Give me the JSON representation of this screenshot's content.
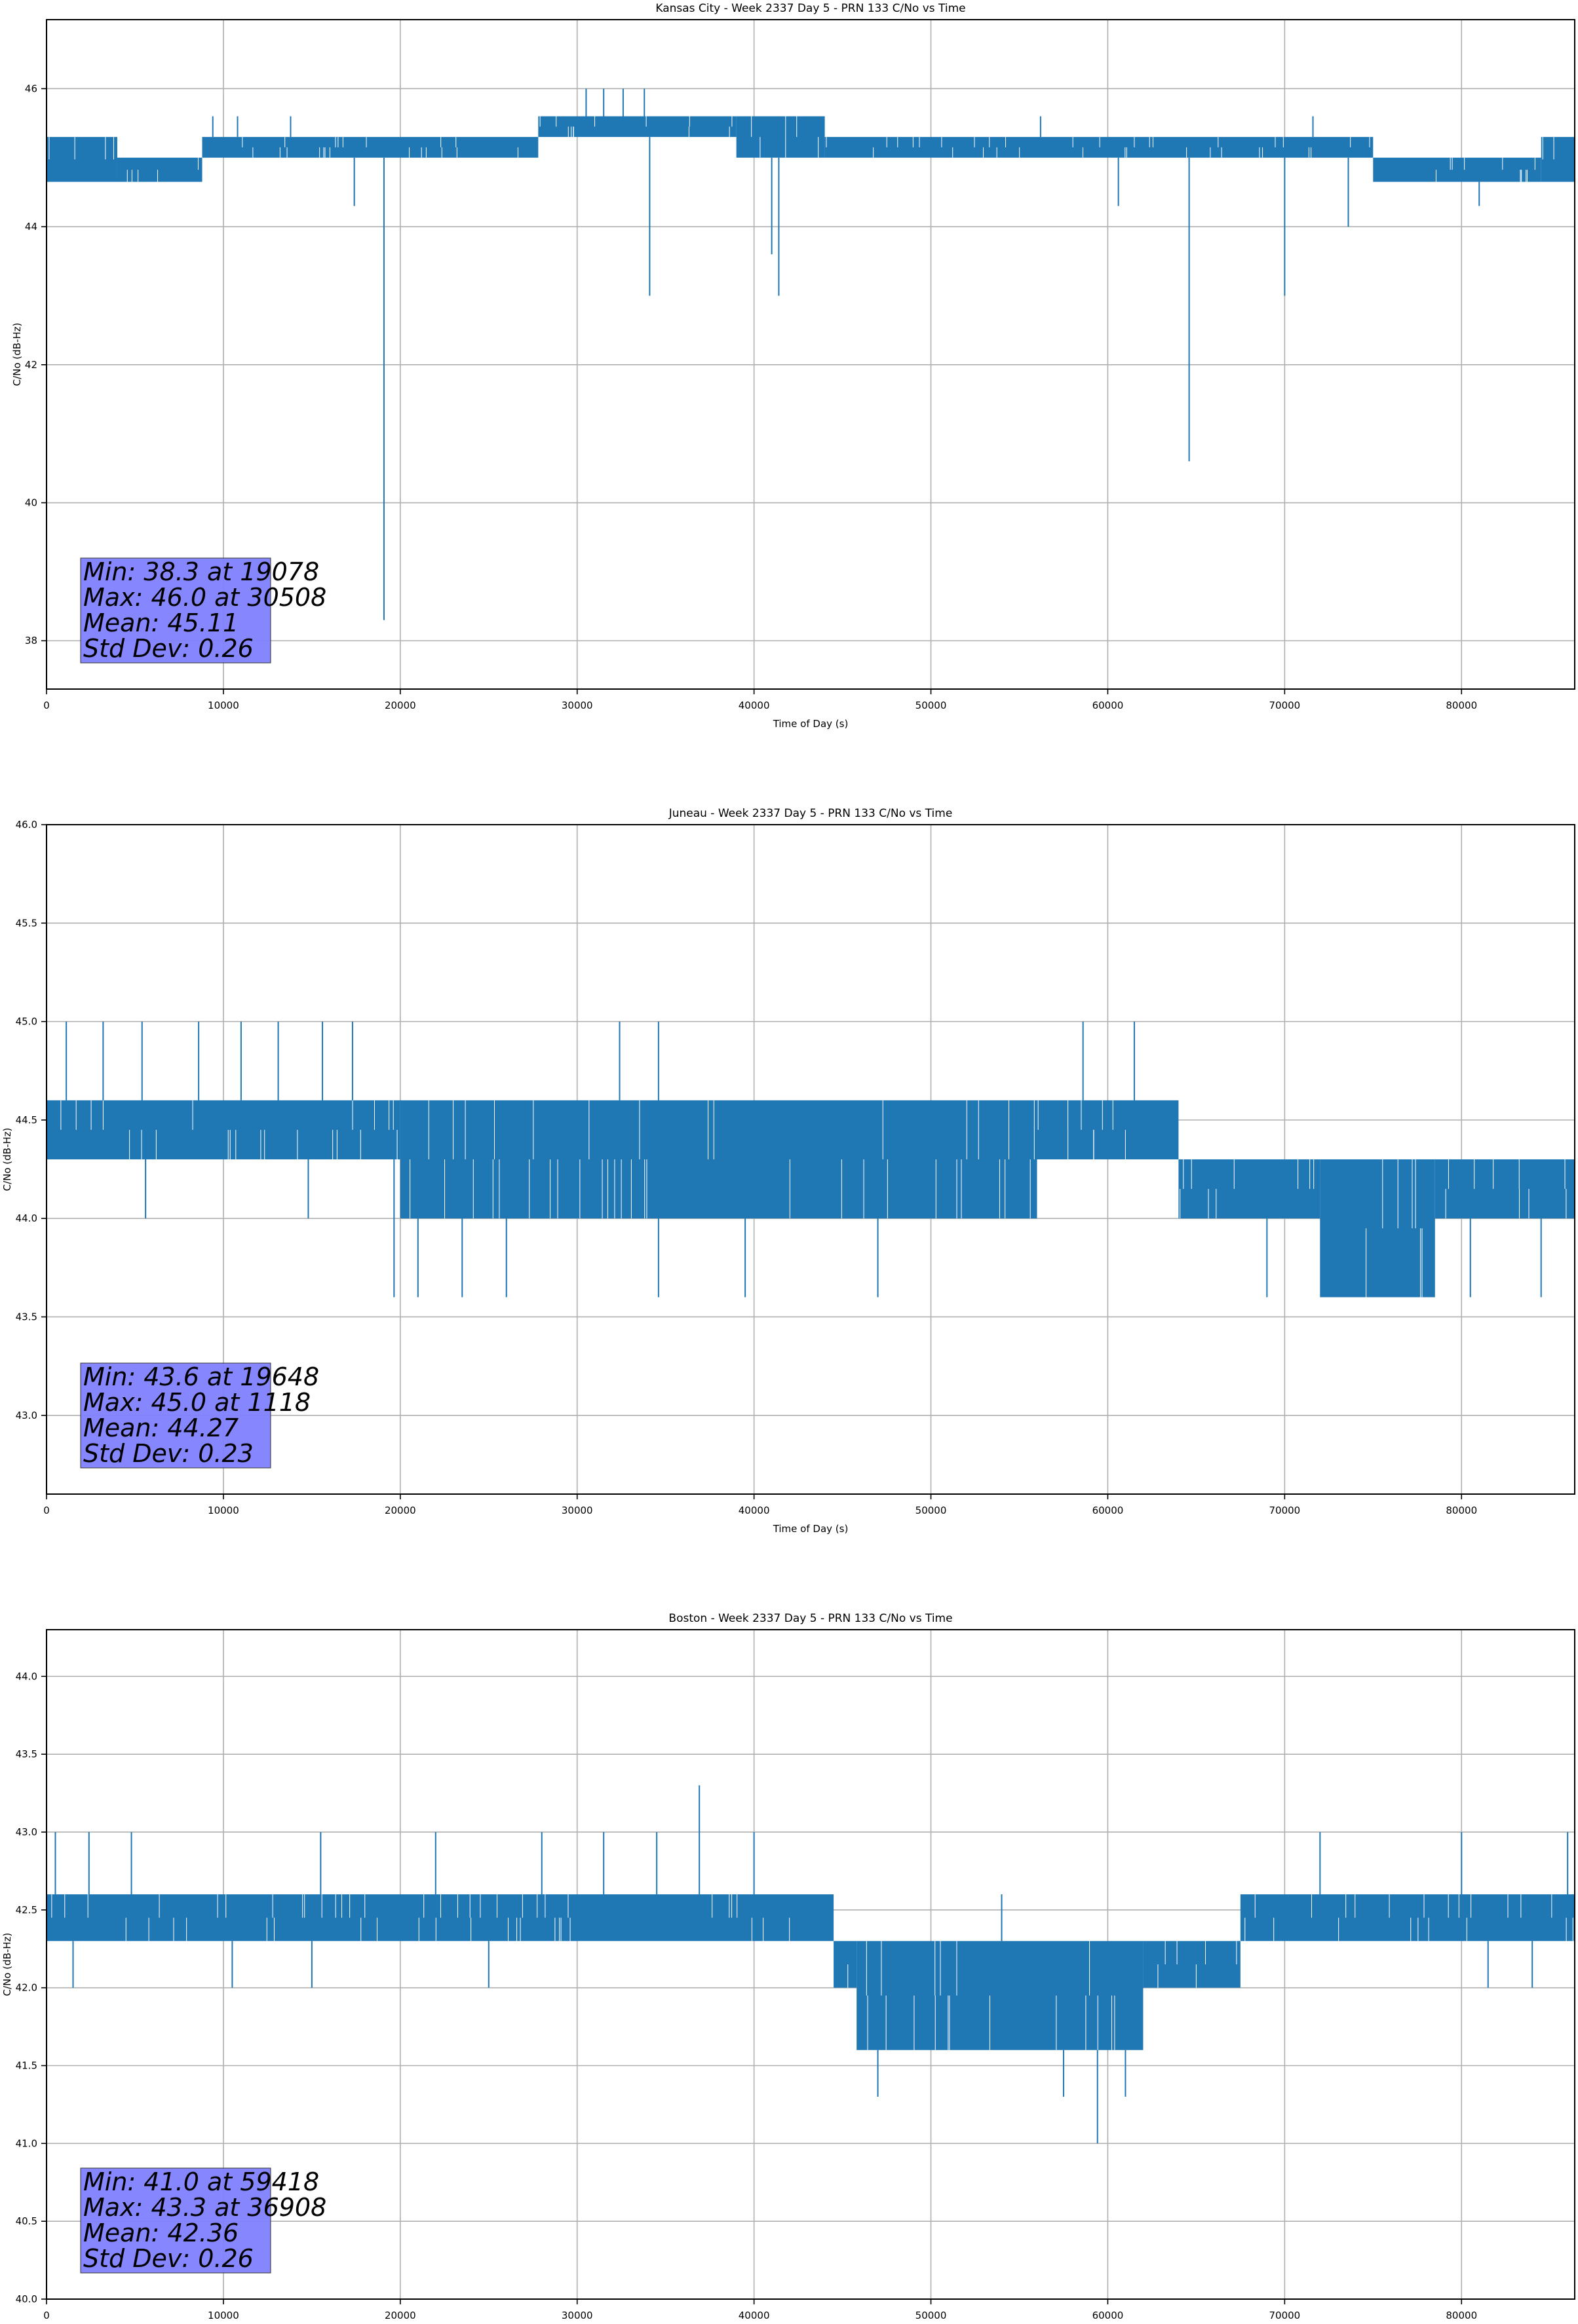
{
  "figure": {
    "xlabel": "Time of Day (s)",
    "ylabel": "C/No (dB-Hz)",
    "line_color": "#1f77b4",
    "stats_box_color": "#8080ff",
    "grid": true
  },
  "chart_data": [
    {
      "type": "line",
      "title": "Kansas City - Week 2337 Day 5 - PRN 133 C/No vs Time",
      "xlabel": "Time of Day (s)",
      "ylabel": "C/No (dB-Hz)",
      "xlim": [
        0,
        86400
      ],
      "ylim": [
        37.3,
        47.0
      ],
      "xticks": [
        0,
        10000,
        20000,
        30000,
        40000,
        50000,
        60000,
        70000,
        80000
      ],
      "xtick_labels": [
        "0",
        "10000",
        "20000",
        "30000",
        "40000",
        "50000",
        "60000",
        "70000",
        "80000"
      ],
      "yticks": [
        38,
        40,
        42,
        44,
        46
      ],
      "ytick_labels": [
        "38",
        "40",
        "42",
        "44",
        "46"
      ],
      "grid": true,
      "stats": [
        "Min: 38.3 at 19078",
        "Max: 46.0 at 30508",
        "Mean: 45.11",
        "Std Dev: 0.26"
      ],
      "bands": [
        {
          "x": [
            0,
            4000
          ],
          "low": 44.65,
          "high": 45.3
        },
        {
          "x": [
            4000,
            8800
          ],
          "low": 44.65,
          "high": 45.0
        },
        {
          "x": [
            8800,
            27800
          ],
          "low": 45.0,
          "high": 45.3
        },
        {
          "x": [
            27800,
            39000
          ],
          "low": 45.3,
          "high": 45.6
        },
        {
          "x": [
            39000,
            44000
          ],
          "low": 45.0,
          "high": 45.6
        },
        {
          "x": [
            44000,
            75000
          ],
          "low": 45.0,
          "high": 45.3
        },
        {
          "x": [
            75000,
            84500
          ],
          "low": 44.65,
          "high": 45.0
        },
        {
          "x": [
            84500,
            86400
          ],
          "low": 44.65,
          "high": 45.3
        }
      ],
      "spikes": [
        {
          "x": 19078,
          "y": 38.3
        },
        {
          "x": 64600,
          "y": 40.6
        },
        {
          "x": 34100,
          "y": 43.0
        },
        {
          "x": 41400,
          "y": 43.0
        },
        {
          "x": 70000,
          "y": 43.0
        },
        {
          "x": 41000,
          "y": 43.6
        },
        {
          "x": 17400,
          "y": 44.3
        },
        {
          "x": 60600,
          "y": 44.3
        },
        {
          "x": 73600,
          "y": 44.0
        },
        {
          "x": 81000,
          "y": 44.3
        },
        {
          "x": 30508,
          "y": 46.0
        },
        {
          "x": 31500,
          "y": 46.0
        },
        {
          "x": 32600,
          "y": 46.0
        },
        {
          "x": 33800,
          "y": 46.0
        },
        {
          "x": 9400,
          "y": 45.6
        },
        {
          "x": 10800,
          "y": 45.6
        },
        {
          "x": 13800,
          "y": 45.6
        },
        {
          "x": 56200,
          "y": 45.6
        },
        {
          "x": 71600,
          "y": 45.6
        }
      ]
    },
    {
      "type": "line",
      "title": "Juneau - Week 2337 Day 5 - PRN 133 C/No vs Time",
      "xlabel": "Time of Day (s)",
      "ylabel": "C/No (dB-Hz)",
      "xlim": [
        0,
        86400
      ],
      "ylim": [
        42.6,
        46.0
      ],
      "xticks": [
        0,
        10000,
        20000,
        30000,
        40000,
        50000,
        60000,
        70000,
        80000
      ],
      "xtick_labels": [
        "0",
        "10000",
        "20000",
        "30000",
        "40000",
        "50000",
        "60000",
        "70000",
        "80000"
      ],
      "yticks": [
        43.0,
        43.5,
        44.0,
        44.5,
        45.0,
        45.5,
        46.0
      ],
      "ytick_labels": [
        "43.0",
        "43.5",
        "44.0",
        "44.5",
        "45.0",
        "45.5",
        "46.0"
      ],
      "grid": true,
      "stats": [
        "Min: 43.6 at 19648",
        "Max: 45.0 at 1118",
        "Mean: 44.27",
        "Std Dev: 0.23"
      ],
      "bands": [
        {
          "x": [
            0,
            20000
          ],
          "low": 44.3,
          "high": 44.6
        },
        {
          "x": [
            20000,
            56000
          ],
          "low": 44.0,
          "high": 44.6
        },
        {
          "x": [
            56000,
            64000
          ],
          "low": 44.3,
          "high": 44.6
        },
        {
          "x": [
            64000,
            72000
          ],
          "low": 44.0,
          "high": 44.3
        },
        {
          "x": [
            72000,
            78500
          ],
          "low": 43.6,
          "high": 44.3
        },
        {
          "x": [
            78500,
            86400
          ],
          "low": 44.0,
          "high": 44.3
        }
      ],
      "spikes": [
        {
          "x": 1118,
          "y": 45.0
        },
        {
          "x": 3200,
          "y": 45.0
        },
        {
          "x": 5400,
          "y": 45.0
        },
        {
          "x": 8600,
          "y": 45.0
        },
        {
          "x": 11000,
          "y": 45.0
        },
        {
          "x": 13100,
          "y": 45.0
        },
        {
          "x": 15600,
          "y": 45.0
        },
        {
          "x": 17300,
          "y": 45.0
        },
        {
          "x": 32400,
          "y": 45.0
        },
        {
          "x": 34600,
          "y": 45.0
        },
        {
          "x": 58600,
          "y": 45.0
        },
        {
          "x": 61500,
          "y": 45.0
        },
        {
          "x": 19648,
          "y": 43.6
        },
        {
          "x": 21000,
          "y": 43.6
        },
        {
          "x": 23500,
          "y": 43.6
        },
        {
          "x": 26000,
          "y": 43.6
        },
        {
          "x": 34600,
          "y": 43.6
        },
        {
          "x": 39500,
          "y": 43.6
        },
        {
          "x": 47000,
          "y": 43.6
        },
        {
          "x": 69000,
          "y": 43.6
        },
        {
          "x": 80500,
          "y": 43.6
        },
        {
          "x": 84500,
          "y": 43.6
        },
        {
          "x": 5600,
          "y": 44.0
        },
        {
          "x": 14800,
          "y": 44.0
        }
      ]
    },
    {
      "type": "line",
      "title": "Boston - Week 2337 Day 5 - PRN 133 C/No vs Time",
      "xlabel": "Time of Day (s)",
      "ylabel": "C/No (dB-Hz)",
      "xlim": [
        0,
        86400
      ],
      "ylim": [
        40.0,
        44.3
      ],
      "xticks": [
        0,
        10000,
        20000,
        30000,
        40000,
        50000,
        60000,
        70000,
        80000
      ],
      "xtick_labels": [
        "0",
        "10000",
        "20000",
        "30000",
        "40000",
        "50000",
        "60000",
        "70000",
        "80000"
      ],
      "yticks": [
        40.0,
        40.5,
        41.0,
        41.5,
        42.0,
        42.5,
        43.0,
        43.5,
        44.0
      ],
      "ytick_labels": [
        "40.0",
        "40.5",
        "41.0",
        "41.5",
        "42.0",
        "42.5",
        "43.0",
        "43.5",
        "44.0"
      ],
      "grid": true,
      "stats": [
        "Min: 41.0 at 59418",
        "Max: 43.3 at 36908",
        "Mean: 42.36",
        "Std Dev: 0.26"
      ],
      "bands": [
        {
          "x": [
            0,
            44500
          ],
          "low": 42.3,
          "high": 42.6
        },
        {
          "x": [
            44500,
            45800
          ],
          "low": 42.0,
          "high": 42.3
        },
        {
          "x": [
            45800,
            62000
          ],
          "low": 41.6,
          "high": 42.3
        },
        {
          "x": [
            62000,
            67500
          ],
          "low": 42.0,
          "high": 42.3
        },
        {
          "x": [
            67500,
            86400
          ],
          "low": 42.3,
          "high": 42.6
        }
      ],
      "spikes": [
        {
          "x": 36908,
          "y": 43.3
        },
        {
          "x": 500,
          "y": 43.0
        },
        {
          "x": 2400,
          "y": 43.0
        },
        {
          "x": 4800,
          "y": 43.0
        },
        {
          "x": 15500,
          "y": 43.0
        },
        {
          "x": 22000,
          "y": 43.0
        },
        {
          "x": 28000,
          "y": 43.0
        },
        {
          "x": 31500,
          "y": 43.0
        },
        {
          "x": 34500,
          "y": 43.0
        },
        {
          "x": 40000,
          "y": 43.0
        },
        {
          "x": 72000,
          "y": 43.0
        },
        {
          "x": 80000,
          "y": 43.0
        },
        {
          "x": 86000,
          "y": 43.0
        },
        {
          "x": 1500,
          "y": 42.0
        },
        {
          "x": 10500,
          "y": 42.0
        },
        {
          "x": 15000,
          "y": 42.0
        },
        {
          "x": 25000,
          "y": 42.0
        },
        {
          "x": 81500,
          "y": 42.0
        },
        {
          "x": 84000,
          "y": 42.0
        },
        {
          "x": 47000,
          "y": 41.3
        },
        {
          "x": 57500,
          "y": 41.3
        },
        {
          "x": 59418,
          "y": 41.0
        },
        {
          "x": 61000,
          "y": 41.3
        },
        {
          "x": 54000,
          "y": 42.6
        }
      ]
    }
  ]
}
